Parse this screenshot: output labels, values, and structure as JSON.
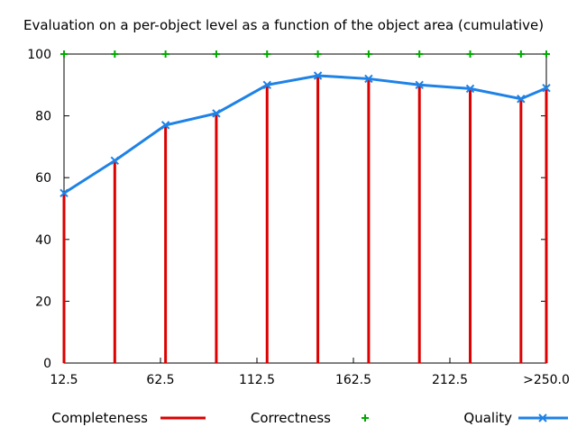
{
  "chart_data": {
    "type": "bar",
    "title": "Evaluation on a per-object level as a function of the object area (cumulative)",
    "xlabel": "",
    "ylabel": "",
    "x": [
      12.5,
      37.5,
      62.5,
      87.5,
      112.5,
      137.5,
      162.5,
      187.5,
      212.5,
      237.5,
      250.0
    ],
    "xlim": [
      12.5,
      250.0
    ],
    "ylim": [
      0,
      100
    ],
    "xticks": [
      "12.5",
      "62.5",
      "112.5",
      "162.5",
      "212.5",
      ">250.0"
    ],
    "yticks": [
      0,
      20,
      40,
      60,
      80,
      100
    ],
    "grid": false,
    "legend_position": "bottom",
    "series": [
      {
        "name": "Completeness",
        "type": "impulse",
        "color": "#dd0000",
        "values": [
          55,
          65.5,
          77,
          80.8,
          90,
          93,
          92,
          90,
          88.8,
          85.5,
          89
        ]
      },
      {
        "name": "Correctness",
        "type": "scatter",
        "marker": "plus",
        "color": "#00aa00",
        "values": [
          100,
          100,
          100,
          100,
          100,
          100,
          100,
          100,
          100,
          100,
          100
        ]
      },
      {
        "name": "Quality",
        "type": "line",
        "marker": "x",
        "color": "#1e82e6",
        "values": [
          55,
          65.5,
          77,
          80.8,
          90,
          93,
          92,
          90,
          88.8,
          85.5,
          89
        ]
      }
    ]
  }
}
